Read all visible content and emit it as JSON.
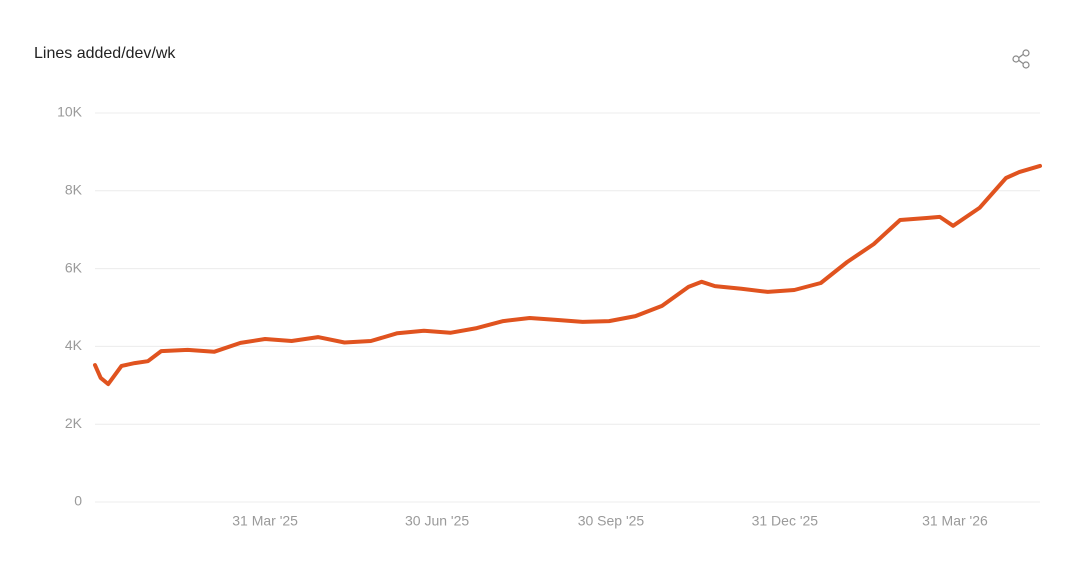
{
  "chart_data": {
    "type": "line",
    "title": "Lines added/dev/wk",
    "x": [
      "2024-12-31",
      "2025-01-03",
      "2025-01-07",
      "2025-01-14",
      "2025-01-21",
      "2025-01-28",
      "2025-02-04",
      "2025-02-18",
      "2025-03-04",
      "2025-03-18",
      "2025-03-31",
      "2025-04-14",
      "2025-04-28",
      "2025-05-12",
      "2025-05-26",
      "2025-06-09",
      "2025-06-23",
      "2025-07-07",
      "2025-07-21",
      "2025-08-04",
      "2025-08-18",
      "2025-09-01",
      "2025-09-15",
      "2025-09-29",
      "2025-10-13",
      "2025-10-27",
      "2025-11-10",
      "2025-11-17",
      "2025-11-24",
      "2025-12-08",
      "2025-12-22",
      "2026-01-05",
      "2026-01-19",
      "2026-02-02",
      "2026-02-16",
      "2026-03-02",
      "2026-03-16",
      "2026-03-23",
      "2026-03-30",
      "2026-04-13",
      "2026-04-27",
      "2026-05-04",
      "2026-05-15"
    ],
    "series": [
      {
        "name": "Lines added/dev/wk",
        "color": "#e0531f",
        "values": [
          3520,
          3190,
          3030,
          3500,
          3570,
          3620,
          3880,
          3910,
          3860,
          4090,
          4190,
          4140,
          4240,
          4100,
          4140,
          4340,
          4400,
          4350,
          4470,
          4650,
          4730,
          4680,
          4630,
          4650,
          4780,
          5040,
          5530,
          5660,
          5550,
          5480,
          5400,
          5450,
          5630,
          6170,
          6630,
          7250,
          7300,
          7330,
          7100,
          7560,
          8330,
          8480,
          8640
        ]
      }
    ],
    "xlim": [
      "2024-12-31",
      "2026-05-15"
    ],
    "xticks": [
      {
        "value": "2025-03-31",
        "label": "31 Mar '25"
      },
      {
        "value": "2025-06-30",
        "label": "30 Jun '25"
      },
      {
        "value": "2025-09-30",
        "label": "30 Sep '25"
      },
      {
        "value": "2025-12-31",
        "label": "31 Dec '25"
      },
      {
        "value": "2026-03-31",
        "label": "31 Mar '26"
      }
    ],
    "ylim": [
      0,
      10000
    ],
    "yticks": [
      0,
      {
        "value": 2000,
        "label": "2K"
      },
      {
        "value": 4000,
        "label": "4K"
      },
      {
        "value": 6000,
        "label": "6K"
      },
      {
        "value": 8000,
        "label": "8K"
      },
      {
        "value": 10000,
        "label": "10K"
      }
    ],
    "grid": true
  }
}
